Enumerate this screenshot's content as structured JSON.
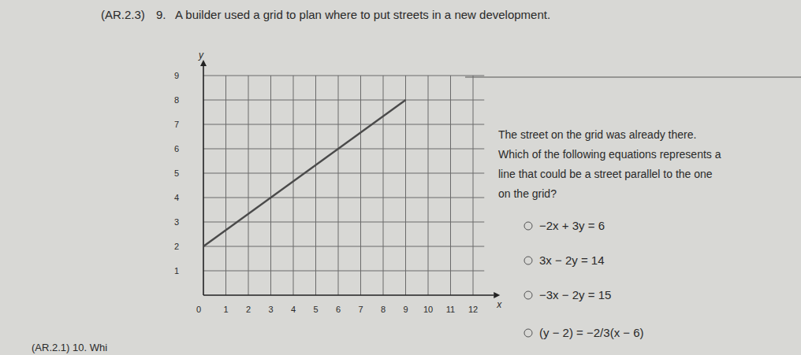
{
  "header": {
    "standard": "(AR.2.3)",
    "number": "9.",
    "prompt": "A builder used a grid to plan where to put streets in a new development."
  },
  "question": {
    "lines": [
      "The street on the grid was already there.",
      "Which of the following equations represents a",
      "line that could be a street parallel to the one",
      "on the grid?"
    ]
  },
  "choices": [
    "−2x + 3y = 6",
    "3x − 2y = 14",
    "−3x − 2y = 15",
    "(y − 2) = −2/3(x − 6)"
  ],
  "footer": "(AR.2.1) 10. Whi",
  "chart_data": {
    "type": "line",
    "x_label": "x",
    "y_label": "y",
    "x": [
      0,
      9
    ],
    "series": [
      {
        "values": [
          2,
          8
        ],
        "color": "#4a4a4a"
      }
    ],
    "xlim": [
      0,
      12.5
    ],
    "ylim": [
      0,
      9
    ],
    "xticks": [
      0,
      1,
      2,
      3,
      4,
      5,
      6,
      7,
      8,
      9,
      10,
      11,
      12
    ],
    "yticks": [
      1,
      2,
      3,
      4,
      5,
      6,
      7,
      8,
      9
    ],
    "grid": true
  }
}
